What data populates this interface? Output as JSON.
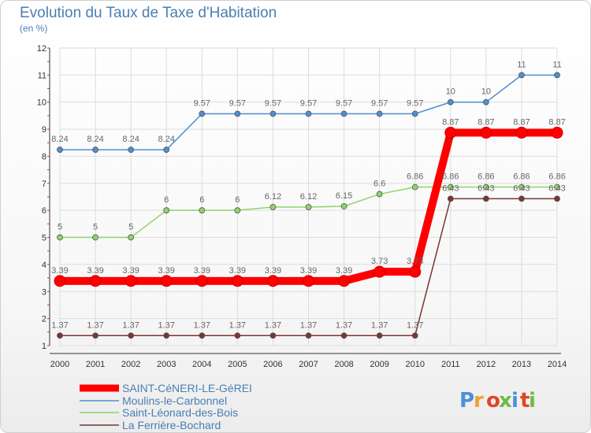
{
  "chart_data": {
    "type": "line",
    "title": "Evolution du Taux de Taxe d'Habitation",
    "subtitle": "(en %)",
    "x": [
      2000,
      2001,
      2002,
      2003,
      2004,
      2005,
      2006,
      2007,
      2008,
      2009,
      2010,
      2011,
      2012,
      2013,
      2014
    ],
    "ylim": [
      1,
      12
    ],
    "yticks": [
      1,
      2,
      3,
      4,
      5,
      6,
      7,
      8,
      9,
      10,
      11,
      12
    ],
    "grid": true,
    "legend_position": "bottom-left",
    "series": [
      {
        "name": "SAINT-CéNERI-LE-GéREI",
        "color": "#ff0000",
        "values": [
          3.39,
          3.39,
          3.39,
          3.39,
          3.39,
          3.39,
          3.39,
          3.39,
          3.39,
          3.73,
          3.73,
          8.87,
          8.87,
          8.87,
          8.87
        ],
        "labels": [
          "3.39",
          "3.39",
          "3.39",
          "3.39",
          "3.39",
          "3.39",
          "3.39",
          "3.39",
          "3.39",
          "3.73",
          "3.73",
          "8.87",
          "8.87",
          "8.87",
          "8.87"
        ]
      },
      {
        "name": "Moulins-le-Carbonnel",
        "color": "#4f8fd0",
        "values": [
          8.24,
          8.24,
          8.24,
          8.24,
          9.57,
          9.57,
          9.57,
          9.57,
          9.57,
          9.57,
          9.57,
          10,
          10,
          11,
          11
        ],
        "labels": [
          "8.24",
          "8.24",
          "8.24",
          "8.24",
          "9.57",
          "9.57",
          "9.57",
          "9.57",
          "9.57",
          "9.57",
          "9.57",
          "10",
          "10",
          "11",
          "11"
        ]
      },
      {
        "name": "Saint-Léonard-des-Bois",
        "color": "#8fd36a",
        "values": [
          5,
          5,
          5,
          6,
          6,
          6,
          6.12,
          6.12,
          6.15,
          6.6,
          6.86,
          6.86,
          6.86,
          6.86,
          6.86
        ],
        "labels": [
          "5",
          "5",
          "5",
          "6",
          "6",
          "6",
          "6.12",
          "6.12",
          "6.15",
          "6.6",
          "6.86",
          "6.86",
          "6.86",
          "6.86",
          "6.86"
        ]
      },
      {
        "name": "La Ferrière-Bochard",
        "color": "#7a3535",
        "values": [
          1.37,
          1.37,
          1.37,
          1.37,
          1.37,
          1.37,
          1.37,
          1.37,
          1.37,
          1.37,
          1.37,
          6.43,
          6.43,
          6.43,
          6.43
        ],
        "labels": [
          "1.37",
          "1.37",
          "1.37",
          "1.37",
          "1.37",
          "1.37",
          "1.37",
          "1.37",
          "1.37",
          "1.37",
          "1.37",
          "6.43",
          "6.43",
          "6.43",
          "6.43"
        ]
      }
    ]
  },
  "logo": {
    "text": "Proxiti"
  }
}
